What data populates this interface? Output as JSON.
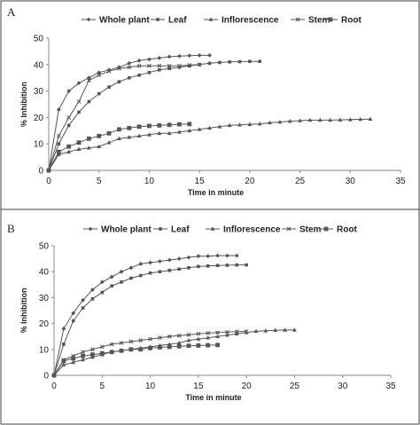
{
  "chart_data": [
    {
      "type": "line",
      "panel_label": "A",
      "xlabel": "Time in minute",
      "ylabel": "% Inhibition",
      "xlim": [
        0,
        35
      ],
      "ylim": [
        0,
        50
      ],
      "xticks": [
        0,
        5,
        10,
        15,
        20,
        25,
        30,
        35
      ],
      "yticks": [
        0,
        10,
        20,
        30,
        40,
        50
      ],
      "legend_position": "top",
      "series": [
        {
          "name": "Whole plant",
          "marker": "diamond",
          "x": [
            0,
            1,
            2,
            3,
            4,
            5,
            6,
            7,
            8,
            9,
            10,
            11,
            12,
            13,
            14,
            15,
            16
          ],
          "y": [
            0,
            23,
            30,
            33,
            35,
            37,
            38,
            39,
            40.5,
            41.5,
            42,
            42.5,
            43,
            43.2,
            43.4,
            43.5,
            43.5
          ]
        },
        {
          "name": "Leaf",
          "marker": "square",
          "x": [
            0,
            1,
            2,
            3,
            4,
            5,
            6,
            7,
            8,
            9,
            10,
            11,
            12,
            13,
            14,
            15,
            16,
            17,
            18,
            19,
            20,
            21
          ],
          "y": [
            0,
            10,
            17,
            22,
            26,
            29,
            31.5,
            33.5,
            35,
            36,
            37,
            38,
            38.5,
            39,
            39.5,
            40,
            40.5,
            40.8,
            41,
            41.1,
            41.2,
            41.2
          ]
        },
        {
          "name": "Inflorescence",
          "marker": "triangle",
          "x": [
            0,
            1,
            2,
            3,
            4,
            5,
            6,
            7,
            8,
            9,
            10,
            11,
            12,
            13,
            14,
            15,
            16,
            17,
            18,
            19,
            20,
            21,
            22,
            23,
            24,
            25,
            26,
            27,
            28,
            29,
            30,
            31,
            32
          ],
          "y": [
            0,
            6,
            7,
            8,
            8.5,
            9,
            10.5,
            12,
            12.5,
            13,
            13.5,
            14,
            14,
            14.5,
            15,
            15.5,
            16,
            16.5,
            17,
            17.2,
            17.4,
            17.6,
            18,
            18.3,
            18.6,
            18.8,
            19,
            19,
            19,
            19.1,
            19.2,
            19.3,
            19.4
          ]
        },
        {
          "name": "Stem",
          "marker": "x",
          "x": [
            0,
            1,
            2,
            3,
            4,
            5,
            6,
            7,
            8,
            9,
            10,
            11,
            12,
            13,
            14,
            15
          ],
          "y": [
            0,
            13,
            20,
            26,
            34,
            36,
            37.5,
            38.5,
            39,
            39.5,
            39.5,
            39.5,
            39.5,
            39.5,
            39.8,
            40
          ]
        },
        {
          "name": "Root",
          "marker": "bigsquare",
          "x": [
            0,
            1,
            2,
            3,
            4,
            5,
            6,
            7,
            8,
            9,
            10,
            11,
            12,
            13,
            14
          ],
          "y": [
            0,
            7,
            9,
            10.5,
            12,
            13,
            14,
            15.5,
            16,
            16.5,
            16.8,
            17,
            17.2,
            17.4,
            17.5
          ]
        }
      ]
    },
    {
      "type": "line",
      "panel_label": "B",
      "xlabel": "Time in minute",
      "ylabel": "% Inhibition",
      "xlim": [
        0,
        35
      ],
      "ylim": [
        0,
        50
      ],
      "xticks": [
        0,
        5,
        10,
        15,
        20,
        25,
        30,
        35
      ],
      "yticks": [
        0,
        10,
        20,
        30,
        40,
        50
      ],
      "legend_position": "top",
      "series": [
        {
          "name": "Whole plant",
          "marker": "diamond",
          "x": [
            0,
            1,
            2,
            3,
            4,
            5,
            6,
            7,
            8,
            9,
            10,
            11,
            12,
            13,
            14,
            15,
            16,
            17,
            18,
            19
          ],
          "y": [
            0,
            18,
            24,
            29,
            33,
            36,
            38,
            40,
            41.5,
            43,
            43.5,
            44,
            44.5,
            45,
            45.5,
            46,
            46,
            46.2,
            46.2,
            46.2
          ]
        },
        {
          "name": "Leaf",
          "marker": "square",
          "x": [
            0,
            1,
            2,
            3,
            4,
            5,
            6,
            7,
            8,
            9,
            10,
            11,
            12,
            13,
            14,
            15,
            16,
            17,
            18,
            19,
            20
          ],
          "y": [
            0,
            12,
            21,
            26,
            29.5,
            32,
            34.5,
            36,
            37.5,
            38.5,
            39.5,
            40,
            40.5,
            41,
            41.5,
            42,
            42.2,
            42.4,
            42.5,
            42.6,
            42.6
          ]
        },
        {
          "name": "Inflorescence",
          "marker": "triangle",
          "x": [
            0,
            1,
            2,
            3,
            4,
            5,
            6,
            7,
            8,
            9,
            10,
            11,
            12,
            13,
            14,
            15,
            16,
            17,
            18,
            19,
            20,
            21,
            22,
            23,
            24,
            25
          ],
          "y": [
            0,
            4,
            5,
            6,
            7,
            8,
            9,
            9.5,
            10,
            10.5,
            11,
            11.5,
            12,
            12.5,
            13.5,
            14,
            14.5,
            15,
            15.5,
            16,
            16.5,
            17,
            17.2,
            17.4,
            17.5,
            17.5
          ]
        },
        {
          "name": "Stem",
          "marker": "x",
          "x": [
            0,
            1,
            2,
            3,
            4,
            5,
            6,
            7,
            8,
            9,
            10,
            11,
            12,
            13,
            14,
            15,
            16,
            17,
            18,
            19,
            20
          ],
          "y": [
            0,
            6,
            7.5,
            9,
            10,
            11,
            12,
            12.5,
            13,
            13.5,
            14,
            14.5,
            15,
            15.3,
            15.6,
            16,
            16.3,
            16.5,
            16.7,
            16.9,
            17
          ]
        },
        {
          "name": "Root",
          "marker": "bigsquare",
          "x": [
            0,
            1,
            2,
            3,
            4,
            5,
            6,
            7,
            8,
            9,
            10,
            11,
            12,
            13,
            14,
            15,
            16,
            17
          ],
          "y": [
            0,
            5.5,
            6.5,
            7.5,
            8,
            8.5,
            9,
            9.5,
            10,
            10,
            10.5,
            10.8,
            11,
            11.2,
            11.4,
            11.5,
            11.6,
            11.7
          ]
        }
      ]
    }
  ]
}
